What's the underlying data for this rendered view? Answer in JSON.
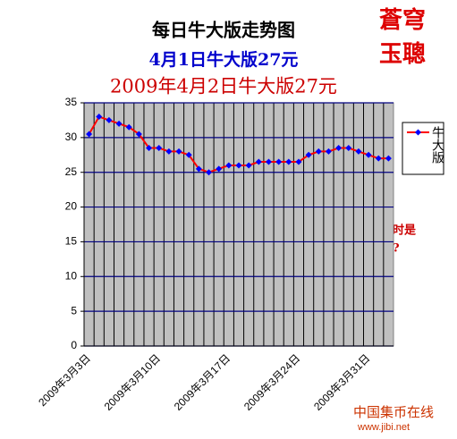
{
  "chart_data": {
    "type": "line",
    "title": "每日牛大版走势图",
    "subtitle": "4月1日牛大版27元",
    "subtitle2": "2009年4月2日牛大版27元",
    "annotation": [
      "何时是",
      "底?"
    ],
    "watermark": [
      "蒼穹",
      "玉聰"
    ],
    "footer": [
      "中国集币在线",
      "www.jibi.net"
    ],
    "categories": [
      "2009年3月3日",
      null,
      null,
      null,
      null,
      null,
      null,
      "2009年3月10日",
      null,
      null,
      null,
      null,
      null,
      null,
      "2009年3月17日",
      null,
      null,
      null,
      null,
      null,
      null,
      "2009年3月24日",
      null,
      null,
      null,
      null,
      null,
      null,
      "2009年3月31日",
      null,
      null
    ],
    "series": [
      {
        "name": "牛大版",
        "color": "#ff0000",
        "marker_color": "#0000ff",
        "values": [
          30.5,
          33,
          32.5,
          32,
          31.5,
          30.5,
          28.5,
          28.5,
          28,
          28,
          27.5,
          25.5,
          25,
          25.5,
          26,
          26,
          26,
          26.5,
          26.5,
          26.5,
          26.5,
          26.5,
          27.5,
          28,
          28,
          28.5,
          28.5,
          28,
          27.5,
          27,
          27
        ]
      }
    ],
    "ylim": [
      0,
      35
    ],
    "yticks": [
      0,
      5,
      10,
      15,
      20,
      25,
      30,
      35
    ],
    "grid": true,
    "legend": "right"
  }
}
